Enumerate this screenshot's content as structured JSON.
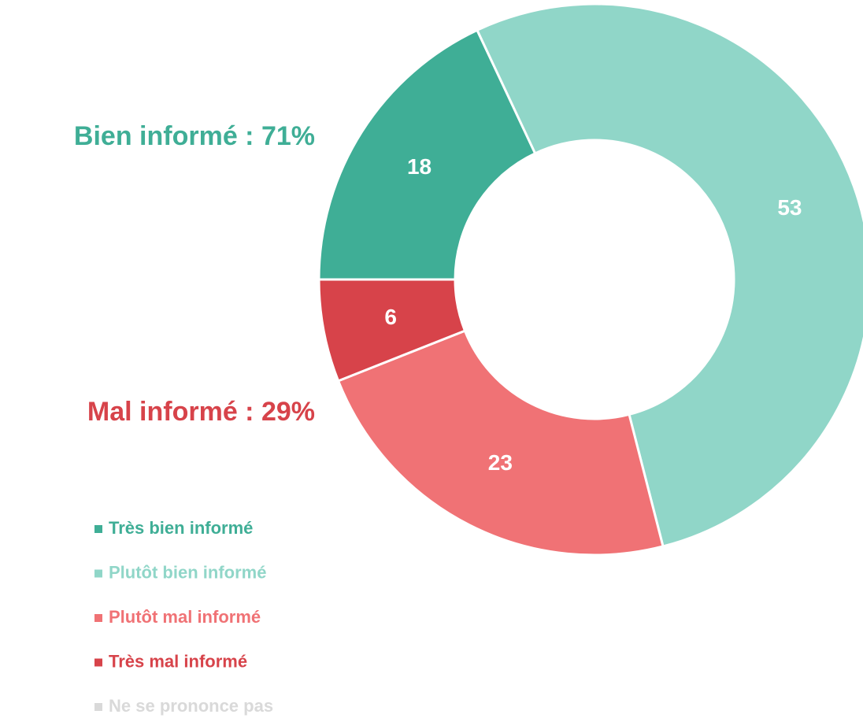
{
  "chart_data": {
    "type": "donut",
    "categories": [
      "Très bien informé",
      "Plutôt bien informé",
      "Plutôt mal informé",
      "Très mal informé",
      "Ne se prononce pas"
    ],
    "values": [
      18,
      53,
      23,
      6,
      0
    ],
    "colors": [
      "#3fae96",
      "#90d6c8",
      "#f07275",
      "#d7434a",
      "#d9d9d9"
    ],
    "annotations": [
      {
        "text": "Bien informé : 71%",
        "color": "#3fae96"
      },
      {
        "text": "Mal informé : 29%",
        "color": "#d7434a"
      }
    ],
    "legend": "bottom-left"
  }
}
